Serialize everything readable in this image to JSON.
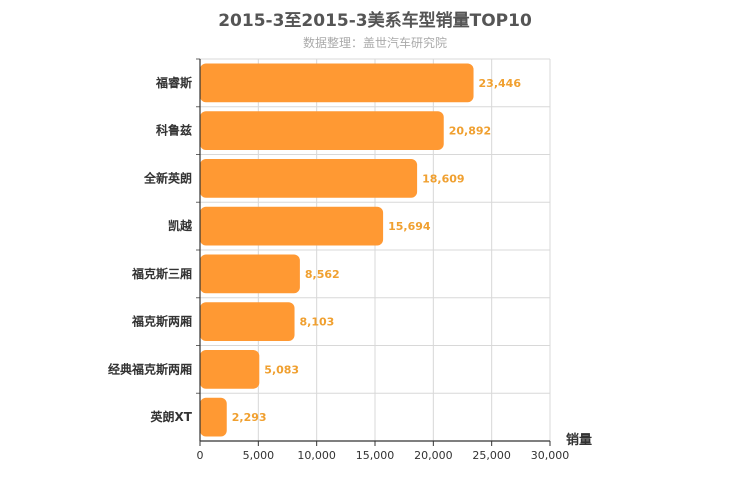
{
  "chart_data": {
    "type": "bar",
    "orientation": "horizontal",
    "title": "2015-3至2015-3美系车型销量TOP10",
    "subtitle": "数据整理：盖世汽车研究院",
    "categories": [
      "福睿斯",
      "科鲁兹",
      "全新英朗",
      "凯越",
      "福克斯三厢",
      "福克斯两厢",
      "经典福克斯两厢",
      "英朗XT"
    ],
    "values": [
      23446,
      20892,
      18609,
      15694,
      8562,
      8103,
      5083,
      2293
    ],
    "value_labels": [
      "23,446",
      "20,892",
      "18,609",
      "15,694",
      "8,562",
      "8,103",
      "5,083",
      "2,293"
    ],
    "xlabel": "销量",
    "ylabel": "",
    "xlim": [
      0,
      30000
    ],
    "ticks": [
      0,
      5000,
      10000,
      15000,
      20000,
      25000,
      30000
    ],
    "tick_labels": [
      "0",
      "5,000",
      "10,000",
      "15,000",
      "20,000",
      "25,000",
      "30,000"
    ],
    "grid": true,
    "bar_color": "#ff9933",
    "label_color": "#f0a030"
  }
}
